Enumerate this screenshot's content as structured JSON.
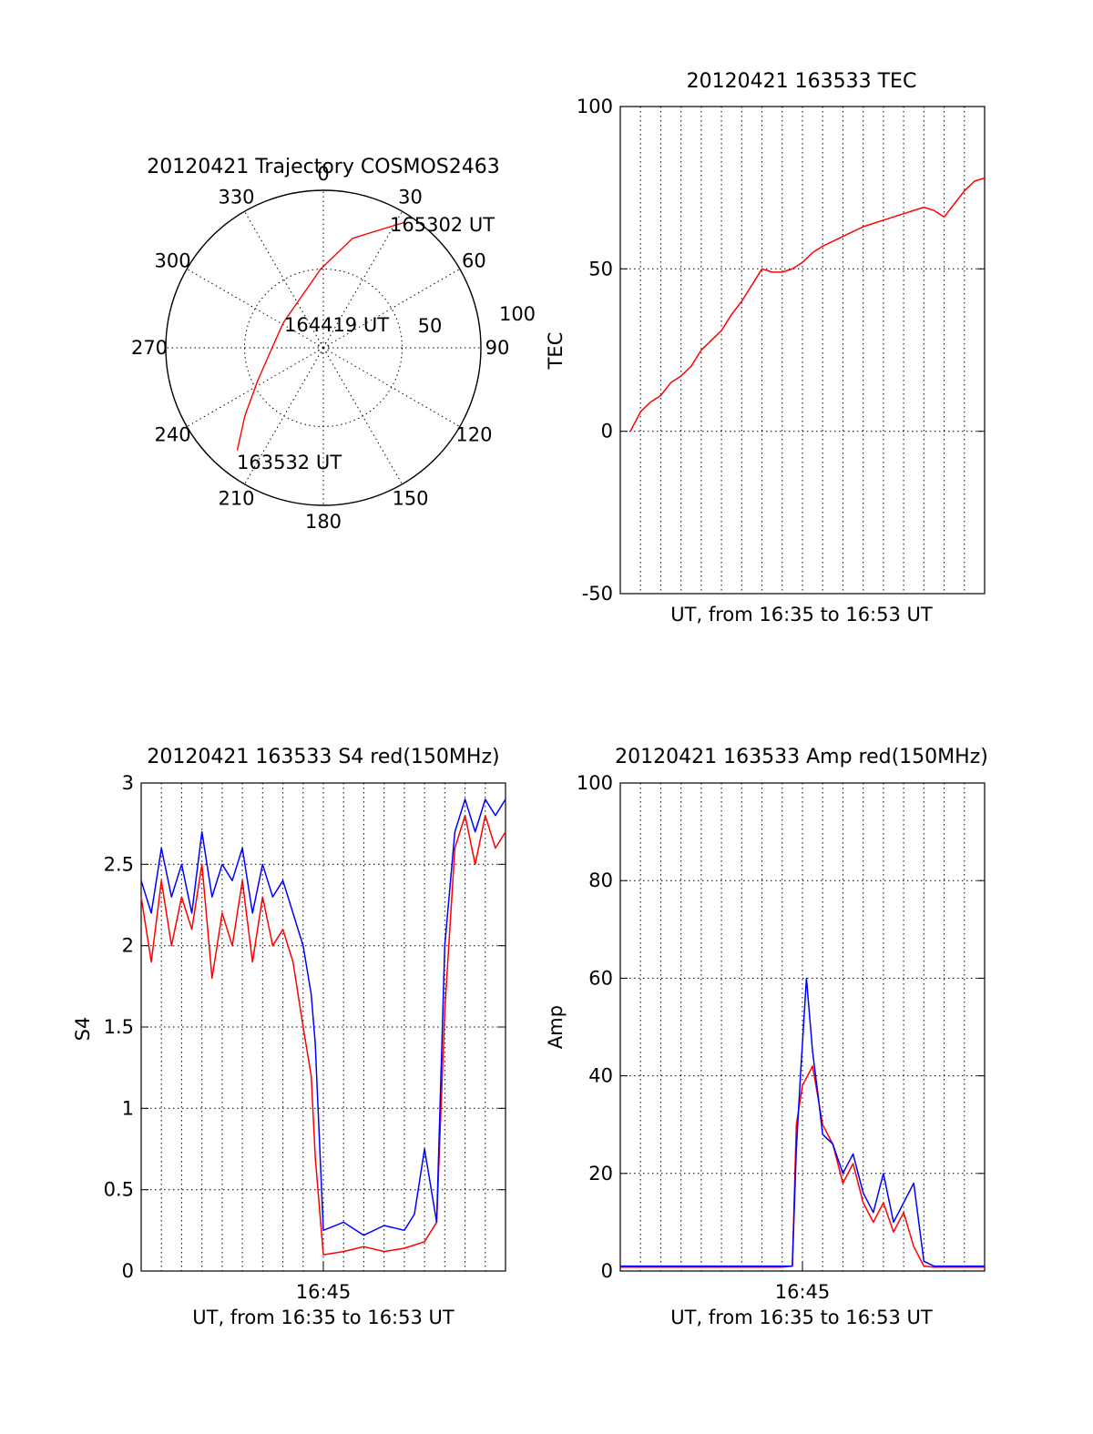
{
  "chart_data": [
    {
      "type": "polar",
      "title": "20120421 Trajectory COSMOS2463",
      "azimuth_labels": [
        "0",
        "30",
        "60",
        "90",
        "120",
        "150",
        "180",
        "210",
        "240",
        "270",
        "300",
        "330"
      ],
      "elevation_labels": [
        "50",
        "100"
      ],
      "annotations": {
        "start": "163532 UT",
        "mid": "164419 UT",
        "end": "165302 UT"
      },
      "series": [
        {
          "color": "#ff0000",
          "points": [
            {
              "az": 220,
              "r": 85
            },
            {
              "az": 229,
              "r": 66
            },
            {
              "az": 243,
              "r": 47
            },
            {
              "az": 268,
              "r": 33
            },
            {
              "az": 302,
              "r": 30
            },
            {
              "az": 333,
              "r": 34
            },
            {
              "az": 358,
              "r": 50
            },
            {
              "az": 15,
              "r": 72
            },
            {
              "az": 27,
              "r": 85
            },
            {
              "az": 33,
              "r": 95
            }
          ]
        }
      ]
    },
    {
      "type": "line",
      "title": "20120421 163533 TEC",
      "xlabel": "UT, from 16:35 to 16:53 UT",
      "ylabel": "TEC",
      "xlim": [
        0,
        18
      ],
      "ylim": [
        -50,
        100
      ],
      "yticks": [
        "-50",
        "0",
        "50",
        "100"
      ],
      "xticks": [],
      "grid": true,
      "series": [
        {
          "color": "#ff0000",
          "x": [
            0.5,
            1.0,
            1.5,
            2.0,
            2.5,
            3.0,
            3.5,
            4.0,
            4.5,
            5.0,
            5.5,
            6.0,
            6.5,
            7.0,
            7.5,
            8.0,
            8.5,
            9.0,
            9.5,
            10.0,
            11.0,
            12.0,
            13.0,
            14.0,
            15.0,
            15.5,
            16.0,
            16.5,
            17.0,
            17.5,
            18.0
          ],
          "y": [
            0,
            6,
            9,
            11,
            15,
            17,
            20,
            25,
            28,
            31,
            36,
            40,
            45,
            50,
            49,
            49,
            50,
            52,
            55,
            57,
            60,
            63,
            65,
            67,
            69,
            68,
            66,
            70,
            74,
            77,
            78
          ]
        }
      ]
    },
    {
      "type": "line",
      "title": "20120421 163533 S4 red(150MHz)",
      "xlabel": "UT, from 16:35 to 16:53 UT",
      "ylabel": "S4",
      "xlim": [
        0,
        18
      ],
      "ylim": [
        0,
        3
      ],
      "yticks": [
        "0",
        "0.5",
        "1",
        "1.5",
        "2",
        "2.5",
        "3"
      ],
      "xticks": [
        {
          "x": 9,
          "label": "16:45"
        }
      ],
      "grid": true,
      "series": [
        {
          "color": "#ff0000",
          "x": [
            0,
            0.5,
            1.0,
            1.5,
            2.0,
            2.5,
            3.0,
            3.5,
            4.0,
            4.5,
            5.0,
            5.5,
            6.0,
            6.5,
            7.0,
            7.5,
            8.0,
            8.4,
            8.6,
            9.0,
            10.0,
            11.0,
            12.0,
            13.0,
            14.0,
            14.6,
            15.0,
            15.5,
            16.0,
            16.5,
            17.0,
            17.5,
            18.0
          ],
          "y": [
            2.3,
            1.9,
            2.4,
            2.0,
            2.3,
            2.1,
            2.5,
            1.8,
            2.2,
            2.0,
            2.4,
            1.9,
            2.3,
            2.0,
            2.1,
            1.9,
            1.5,
            1.2,
            0.7,
            0.1,
            0.12,
            0.15,
            0.12,
            0.14,
            0.18,
            0.3,
            1.6,
            2.6,
            2.8,
            2.5,
            2.8,
            2.6,
            2.7
          ]
        },
        {
          "color": "#0000ff",
          "x": [
            0,
            0.5,
            1.0,
            1.5,
            2.0,
            2.5,
            3.0,
            3.5,
            4.0,
            4.5,
            5.0,
            5.5,
            6.0,
            6.5,
            7.0,
            7.5,
            8.0,
            8.4,
            8.6,
            9.0,
            10.0,
            11.0,
            12.0,
            13.0,
            13.5,
            14.0,
            14.6,
            15.0,
            15.5,
            16.0,
            16.5,
            17.0,
            17.5,
            18.0
          ],
          "y": [
            2.4,
            2.2,
            2.6,
            2.3,
            2.5,
            2.2,
            2.7,
            2.3,
            2.5,
            2.4,
            2.6,
            2.2,
            2.5,
            2.3,
            2.4,
            2.2,
            2.0,
            1.7,
            1.4,
            0.25,
            0.3,
            0.22,
            0.28,
            0.25,
            0.35,
            0.75,
            0.3,
            2.0,
            2.7,
            2.9,
            2.7,
            2.9,
            2.8,
            2.9
          ]
        }
      ]
    },
    {
      "type": "line",
      "title": "20120421 163533 Amp red(150MHz)",
      "xlabel": "UT, from 16:35 to 16:53 UT",
      "ylabel": "Amp",
      "xlim": [
        0,
        18
      ],
      "ylim": [
        0,
        100
      ],
      "yticks": [
        "0",
        "20",
        "40",
        "60",
        "80",
        "100"
      ],
      "xticks": [
        {
          "x": 9,
          "label": "16:45"
        }
      ],
      "grid": true,
      "series": [
        {
          "color": "#ff0000",
          "x": [
            0,
            2,
            4,
            6,
            8,
            8.5,
            8.7,
            9.0,
            9.5,
            10.0,
            10.5,
            11.0,
            11.5,
            12.0,
            12.5,
            13.0,
            13.5,
            14.0,
            14.5,
            15.0,
            15.5,
            16.0,
            18.0
          ],
          "y": [
            0.8,
            0.8,
            0.8,
            0.8,
            0.8,
            1,
            30,
            38,
            42,
            30,
            26,
            18,
            22,
            14,
            10,
            14,
            8,
            12,
            5,
            1,
            0.8,
            0.8,
            0.8
          ]
        },
        {
          "color": "#0000ff",
          "x": [
            0,
            2,
            4,
            6,
            8,
            8.5,
            8.7,
            8.9,
            9.2,
            9.5,
            9.8,
            10.0,
            10.5,
            11.0,
            11.5,
            12.0,
            12.5,
            13.0,
            13.5,
            14.0,
            14.5,
            15.0,
            15.5,
            16.0,
            18.0
          ],
          "y": [
            1,
            1,
            1,
            1,
            1,
            1,
            25,
            40,
            60,
            45,
            35,
            28,
            26,
            20,
            24,
            16,
            12,
            20,
            10,
            14,
            18,
            2,
            1,
            1,
            1
          ]
        }
      ]
    }
  ]
}
